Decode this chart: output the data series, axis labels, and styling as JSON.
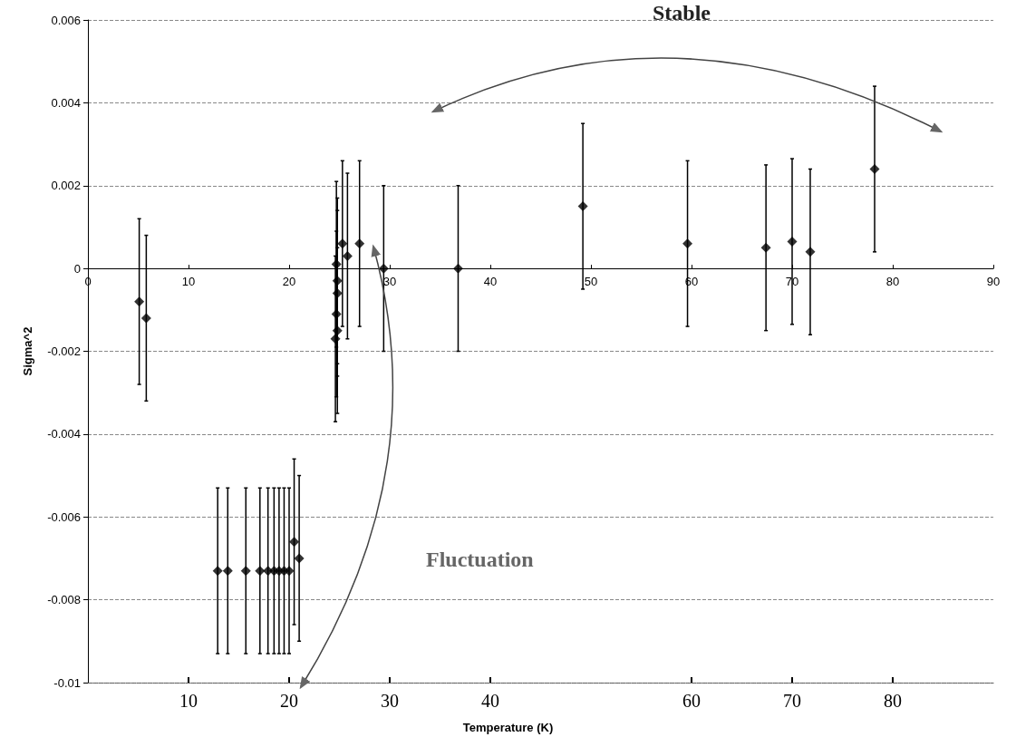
{
  "chart_data": {
    "type": "scatter",
    "xlabel": "Temperature (K)",
    "ylabel": "Sigma^2",
    "x": [
      5.1,
      5.8,
      12.9,
      13.9,
      15.7,
      17.1,
      17.9,
      18.5,
      19.0,
      19.5,
      20.0,
      20.5,
      21.0,
      24.7,
      24.8,
      24.8,
      24.7,
      24.8,
      24.6,
      25.3,
      25.8,
      27.0,
      29.4,
      36.8,
      49.2,
      59.6,
      67.4,
      70.0,
      71.8,
      78.2
    ],
    "values": [
      -0.0008,
      -0.0012,
      -0.0073,
      -0.0073,
      -0.0073,
      -0.0073,
      -0.0073,
      -0.0073,
      -0.0073,
      -0.0073,
      -0.0073,
      -0.0066,
      -0.007,
      0.0001,
      -0.0003,
      -0.0006,
      -0.0011,
      -0.0015,
      -0.0017,
      0.0006,
      0.0003,
      0.0006,
      0,
      0,
      0.0015,
      0.0006,
      0.0005,
      0.00065,
      0.0004,
      0.0024
    ],
    "errors": [
      0.002,
      0.002,
      0.002,
      0.002,
      0.002,
      0.002,
      0.002,
      0.002,
      0.002,
      0.002,
      0.002,
      0.002,
      0.002,
      0.002,
      0.002,
      0.002,
      0.002,
      0.002,
      0.002,
      0.002,
      0.002,
      0.002,
      0.002,
      0.002,
      0.002,
      0.002,
      0.002,
      0.002,
      0.002,
      0.002
    ],
    "color": "#000000",
    "marker": "diamond",
    "grid": "y",
    "xlim": [
      0,
      90
    ],
    "xticks": [
      0,
      10,
      20,
      30,
      40,
      50,
      60,
      70,
      80,
      90
    ],
    "x2lim": [
      0,
      90
    ],
    "x2ticks": [
      10,
      20,
      30,
      40,
      60,
      70,
      80
    ],
    "ylim": [
      -0.01,
      0.006
    ],
    "yticks": [
      -0.01,
      -0.008,
      -0.006,
      -0.004,
      -0.002,
      0,
      0.002,
      0.004,
      0.006
    ],
    "annotations": [
      "Stable",
      "Fluctuation"
    ]
  }
}
